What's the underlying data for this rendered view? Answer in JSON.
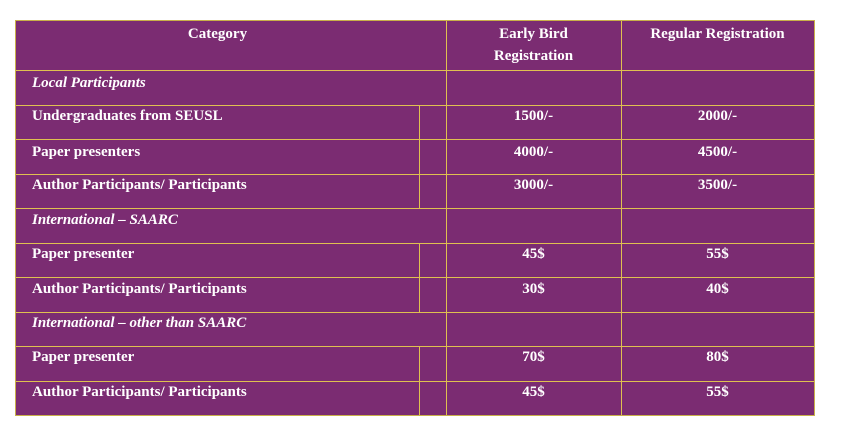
{
  "headers": {
    "category": "Category",
    "early_bird_line1": "Early Bird",
    "early_bird_line2": "Registration",
    "regular": "Regular Registration"
  },
  "sections": [
    {
      "title": "Local Participants",
      "rows": [
        {
          "label": "Undergraduates from SEUSL",
          "early": "1500/-",
          "regular": "2000/-"
        },
        {
          "label": "Paper presenters",
          "early": "4000/-",
          "regular": "4500/-"
        },
        {
          "label": "Author Participants/ Participants",
          "early": "3000/-",
          "regular": "3500/-"
        }
      ]
    },
    {
      "title": "International – SAARC",
      "rows": [
        {
          "label": "Paper presenter",
          "early": "45$",
          "regular": "55$"
        },
        {
          "label": "Author Participants/ Participants",
          "early": "30$",
          "regular": "40$"
        }
      ]
    },
    {
      "title": "International – other than SAARC",
      "rows": [
        {
          "label": "Paper presenter",
          "early": "70$",
          "regular": "80$"
        },
        {
          "label": "Author Participants/ Participants",
          "early": "45$",
          "regular": "55$"
        }
      ]
    }
  ]
}
